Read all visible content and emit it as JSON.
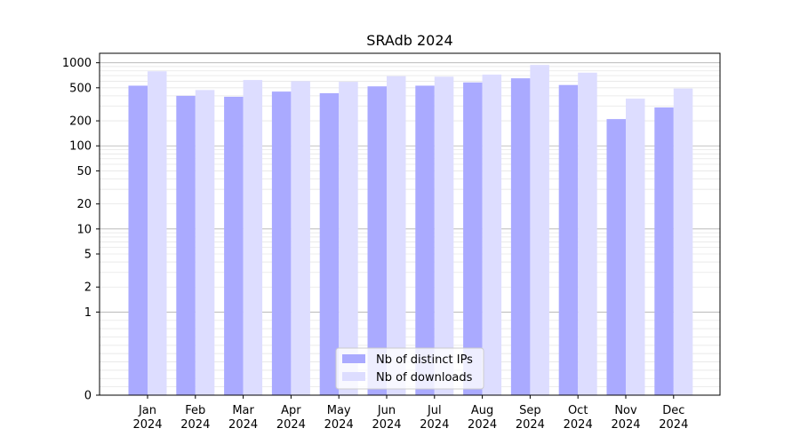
{
  "chart_data": {
    "type": "bar",
    "title": "SRAdb 2024",
    "xlabel": "",
    "ylabel": "",
    "yscale": "symlog",
    "grid": true,
    "legend_position": "bottom-center",
    "categories": [
      [
        "Jan",
        "2024"
      ],
      [
        "Feb",
        "2024"
      ],
      [
        "Mar",
        "2024"
      ],
      [
        "Apr",
        "2024"
      ],
      [
        "May",
        "2024"
      ],
      [
        "Jun",
        "2024"
      ],
      [
        "Jul",
        "2024"
      ],
      [
        "Aug",
        "2024"
      ],
      [
        "Sep",
        "2024"
      ],
      [
        "Oct",
        "2024"
      ],
      [
        "Nov",
        "2024"
      ],
      [
        "Dec",
        "2024"
      ]
    ],
    "yticks": [
      {
        "value": 0,
        "label": "0"
      },
      {
        "value": 1,
        "label": "1"
      },
      {
        "value": 2,
        "label": "2"
      },
      {
        "value": 5,
        "label": "5"
      },
      {
        "value": 10,
        "label": "10"
      },
      {
        "value": 20,
        "label": "20"
      },
      {
        "value": 50,
        "label": "50"
      },
      {
        "value": 100,
        "label": "100"
      },
      {
        "value": 200,
        "label": "200"
      },
      {
        "value": 500,
        "label": "500"
      },
      {
        "value": 1000,
        "label": "1000"
      }
    ],
    "ylim": [
      0,
      1300
    ],
    "series": [
      {
        "name": "Nb of distinct IPs",
        "color": "#aaaaff",
        "values": [
          530,
          400,
          390,
          450,
          430,
          520,
          530,
          580,
          650,
          540,
          210,
          290
        ]
      },
      {
        "name": "Nb of downloads",
        "color": "#ddddff",
        "values": [
          790,
          470,
          620,
          600,
          590,
          690,
          680,
          720,
          940,
          760,
          370,
          490
        ]
      }
    ]
  }
}
